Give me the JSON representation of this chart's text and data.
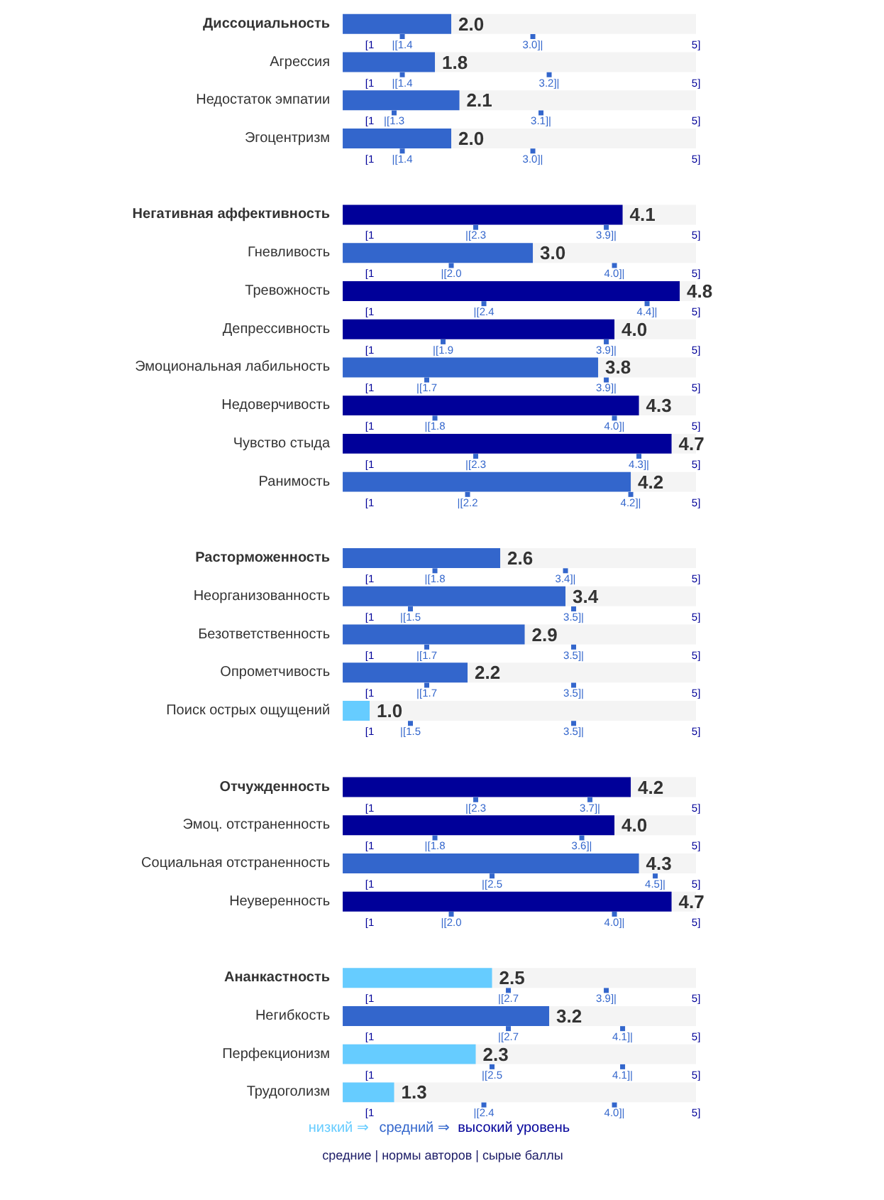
{
  "chart_data": {
    "type": "bar",
    "orientation": "horizontal",
    "xlim": [
      0.67,
      5
    ],
    "legend": "bottom",
    "categories": [
      "Диссоциальность",
      "Агрессия",
      "Недостаток эмпатии",
      "Эгоцентризм",
      null,
      "Негативная аффективность",
      "Гневливость",
      "Тревожность",
      "Депрессивность",
      "Эмоциональная лабильность",
      "Недоверчивость",
      "Чувство стыда",
      "Ранимость",
      null,
      "Расторможенность",
      "Неорганизованность",
      "Безответственность",
      "Опрометчивость",
      "Поиск острых ощущений",
      null,
      "Отчужденность",
      "Эмоц. отстраненность",
      "Социальная отстраненность",
      "Неуверенность",
      null,
      "Ананкастность",
      "Негибкость",
      "Перфекционизм",
      "Трудоголизм"
    ],
    "series": [
      {
        "name": "низкий ⇒",
        "color": "#66ccff",
        "values": [
          null,
          null,
          null,
          null,
          null,
          null,
          null,
          null,
          null,
          null,
          null,
          null,
          null,
          null,
          null,
          null,
          null,
          null,
          1.0,
          null,
          null,
          null,
          null,
          null,
          null,
          2.5,
          null,
          2.3,
          1.3
        ],
        "value_labels": [
          null,
          null,
          null,
          null,
          null,
          null,
          null,
          null,
          null,
          null,
          null,
          null,
          null,
          null,
          null,
          null,
          null,
          null,
          "1.0",
          null,
          null,
          null,
          null,
          null,
          null,
          "2.5",
          null,
          "2.3",
          "1.3"
        ]
      },
      {
        "name": "средний ⇒",
        "color": "#3366cc",
        "values": [
          2.0,
          1.8,
          2.1,
          2.0,
          null,
          null,
          3.0,
          null,
          null,
          3.8,
          null,
          null,
          4.2,
          null,
          2.6,
          3.4,
          2.9,
          2.2,
          null,
          null,
          null,
          null,
          4.3,
          null,
          null,
          null,
          3.2,
          null,
          null
        ],
        "value_labels": [
          "2.0",
          "1.8",
          "2.1",
          "2.0",
          null,
          null,
          "3.0",
          null,
          null,
          "3.8",
          null,
          null,
          "4.2",
          null,
          "2.6",
          "3.4",
          "2.9",
          "2.2",
          null,
          null,
          null,
          null,
          "4.3",
          null,
          null,
          null,
          "3.2",
          null,
          null
        ]
      },
      {
        "name": "высокий уровень",
        "color": "#000099",
        "values": [
          null,
          null,
          null,
          null,
          null,
          4.1,
          null,
          4.8,
          4.0,
          null,
          4.3,
          4.7,
          null,
          null,
          null,
          null,
          null,
          null,
          null,
          null,
          4.2,
          4.0,
          null,
          4.7,
          null,
          null,
          null,
          null,
          null
        ],
        "value_labels": [
          null,
          null,
          null,
          null,
          null,
          "4.1",
          null,
          "4.8",
          "4.0",
          null,
          "4.3",
          "4.7",
          null,
          null,
          null,
          null,
          null,
          null,
          null,
          null,
          "4.2",
          "4.0",
          null,
          "4.7",
          null,
          null,
          null,
          null,
          null
        ]
      },
      {
        "type": "scatter",
        "marker": "square",
        "color": "#3366cc",
        "values": [
          1.4,
          1.4,
          1.3,
          1.4,
          null,
          2.3,
          2.0,
          2.4,
          1.9,
          1.7,
          1.8,
          2.3,
          2.2,
          null,
          1.8,
          1.5,
          1.7,
          1.7,
          1.5,
          null,
          2.3,
          1.8,
          2.5,
          2.0,
          null,
          2.7,
          2.7,
          2.5,
          2.4
        ],
        "value_labels": [
          "|[1.4",
          "|[1.4",
          "|[1.3",
          "|[1.4",
          null,
          "|[2.3",
          "|[2.0",
          "|[2.4",
          "|[1.9",
          "|[1.7",
          "|[1.8",
          "|[2.3",
          "|[2.2",
          null,
          "|[1.8",
          "|[1.5",
          "|[1.7",
          "|[1.7",
          "|[1.5",
          null,
          "|[2.3",
          "|[1.8",
          "|[2.5",
          "|[2.0",
          null,
          "|[2.7",
          "|[2.7",
          "|[2.5",
          "|[2.4"
        ]
      },
      {
        "type": "scatter",
        "marker": "square",
        "color": "#3366cc",
        "values": [
          3.0,
          3.2,
          3.1,
          3.0,
          null,
          3.9,
          4.0,
          4.4,
          3.9,
          3.9,
          4.0,
          4.3,
          4.2,
          null,
          3.4,
          3.5,
          3.5,
          3.5,
          3.5,
          null,
          3.7,
          3.6,
          4.5,
          4.0,
          null,
          3.9,
          4.1,
          4.1,
          4.0
        ],
        "value_labels": [
          "3.0]|",
          "3.2]|",
          "3.1]|",
          "3.0]|",
          null,
          "3.9]|",
          "4.0]|",
          "4.4]|",
          "3.9]|",
          "3.9]|",
          "4.0]|",
          "4.3]|",
          "4.2]|",
          null,
          "3.4]|",
          "3.5]|",
          "3.5]|",
          "3.5]|",
          "3.5]|",
          null,
          "3.7]|",
          "3.6]|",
          "4.5]|",
          "4.0]|",
          null,
          "3.9]|",
          "4.1]|",
          "4.1]|",
          "4.0]|"
        ]
      }
    ],
    "xticks": [
      {
        "value": 1,
        "label": "[1"
      },
      {
        "value": 5,
        "label": "5]"
      }
    ],
    "annotations": [
      "средние | нормы авторов | сырые баллы"
    ]
  }
}
